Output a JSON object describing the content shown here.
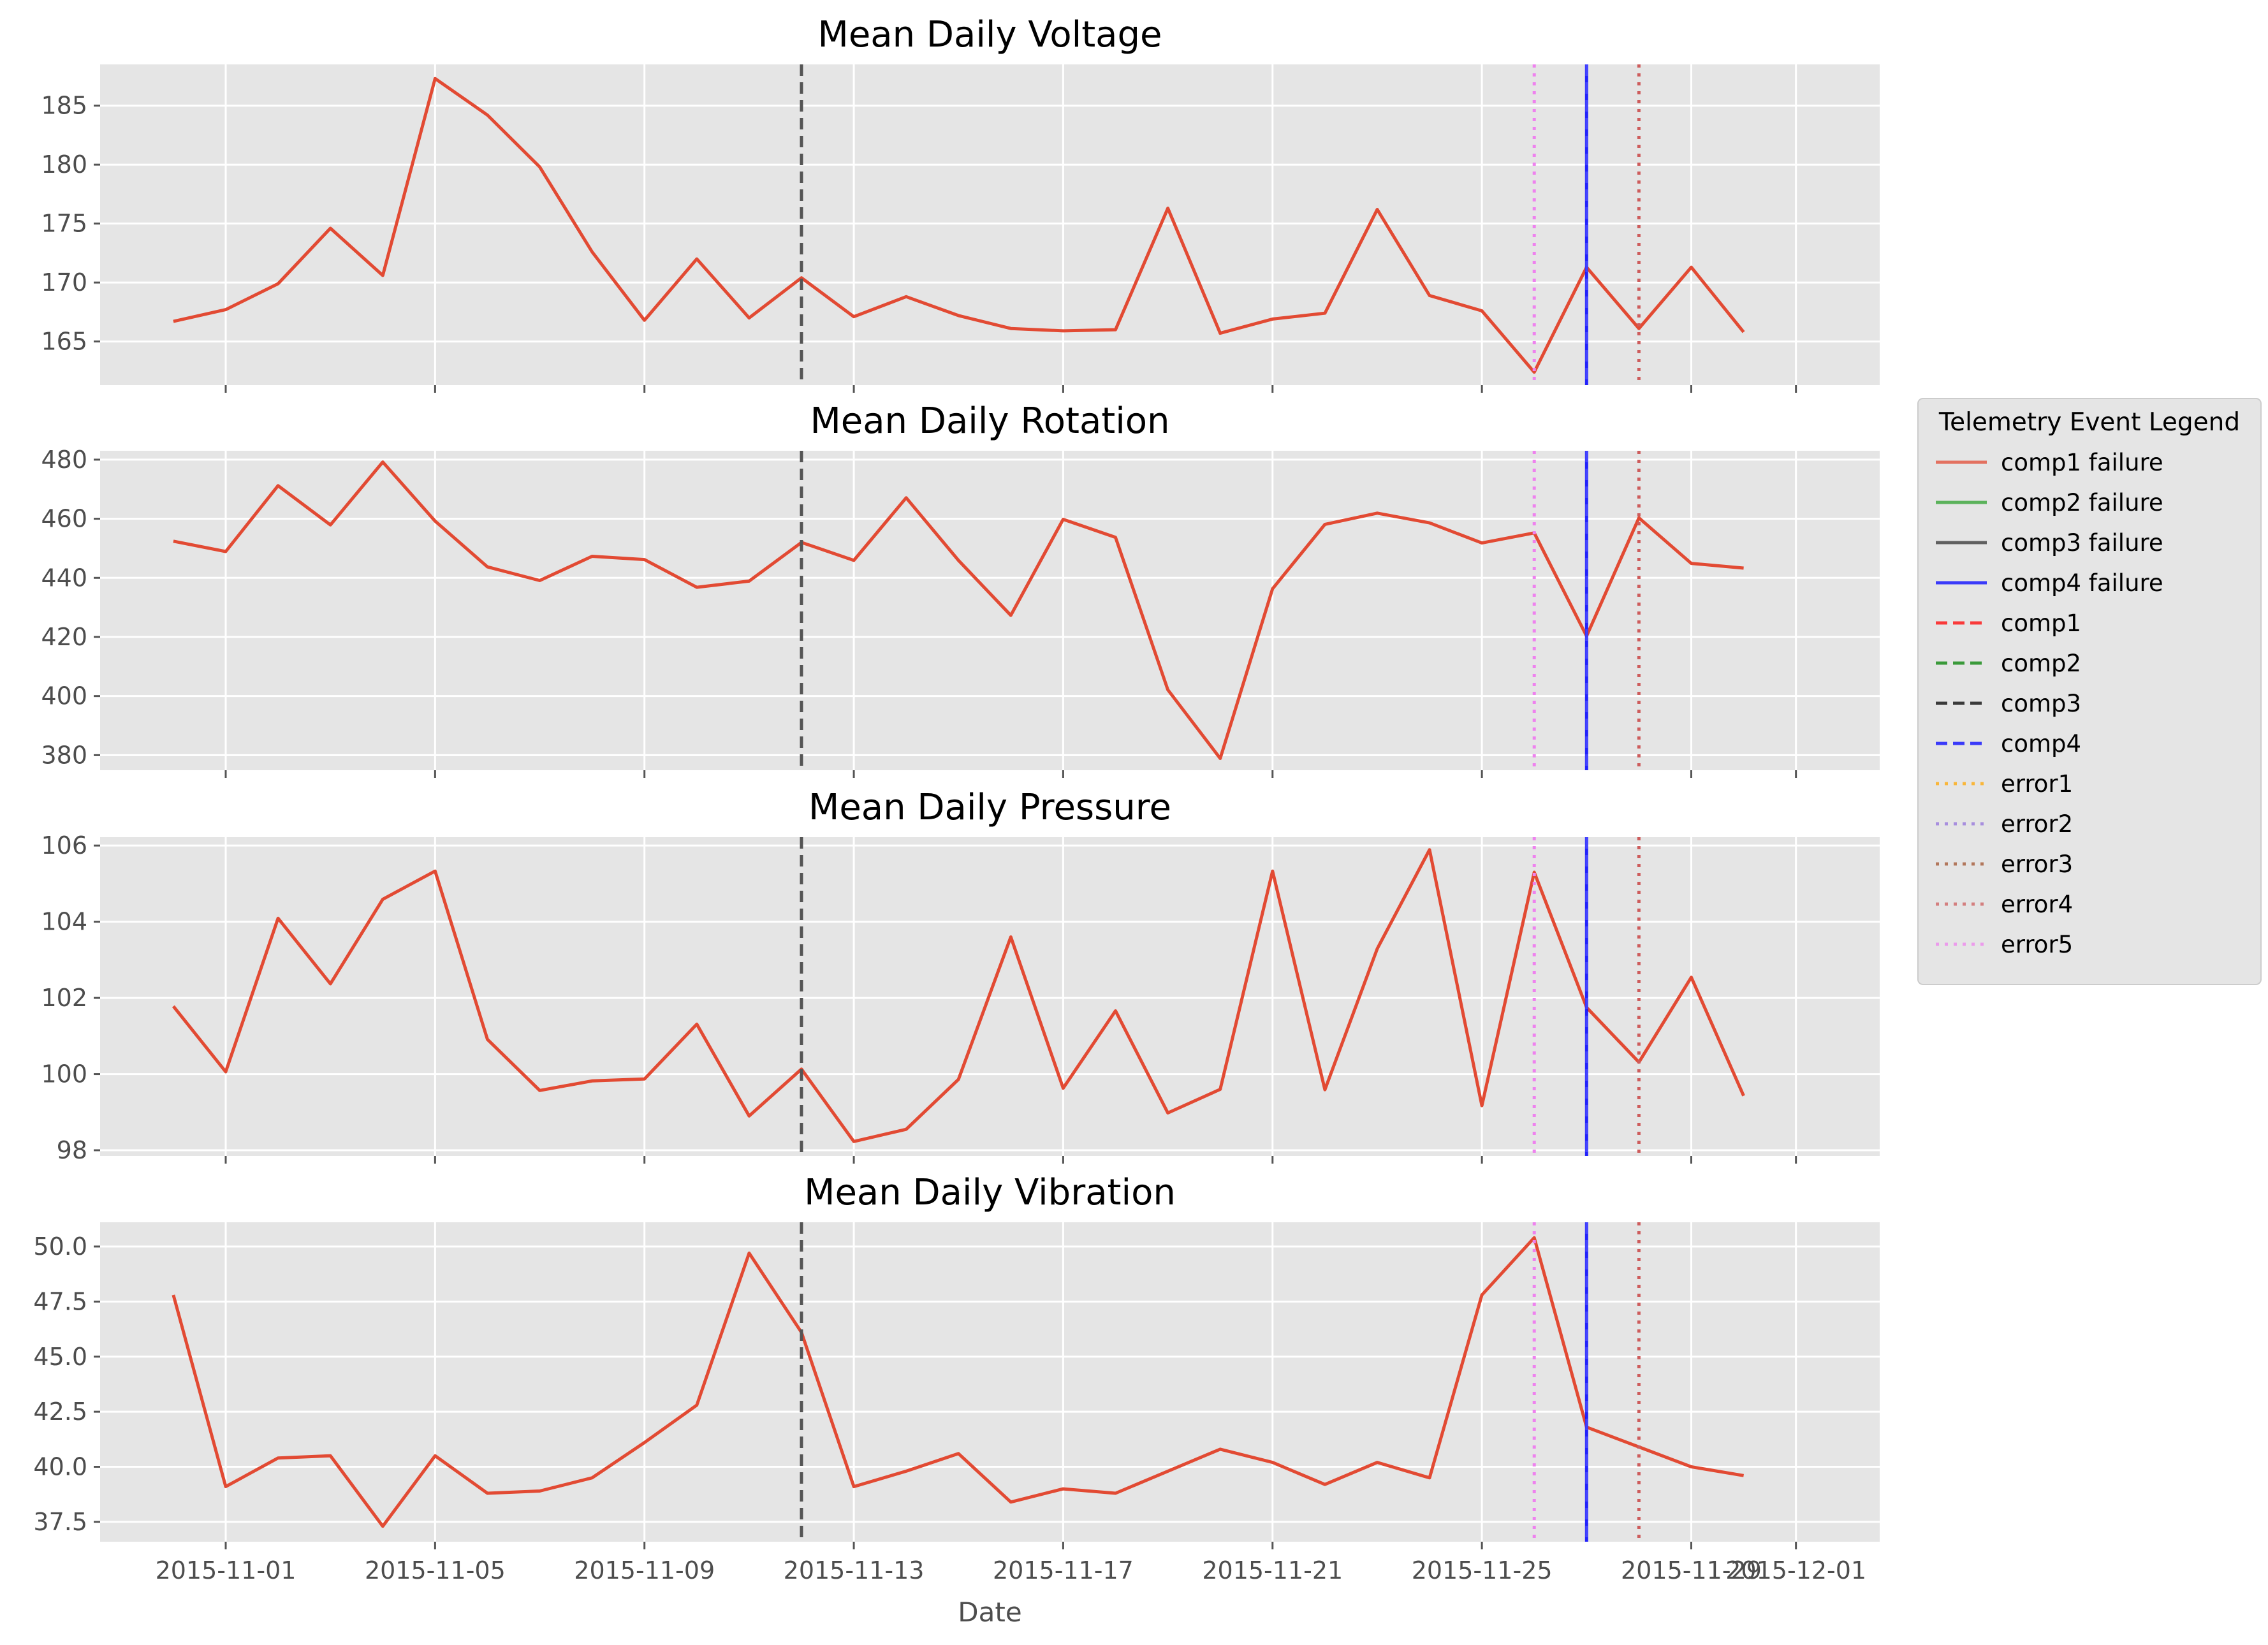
{
  "chart_data": [
    {
      "type": "line",
      "title": "Mean Daily Voltage",
      "xlabel": "",
      "ylabel": "",
      "x": [
        "2015-10-31",
        "2015-11-01",
        "2015-11-02",
        "2015-11-03",
        "2015-11-04",
        "2015-11-05",
        "2015-11-06",
        "2015-11-07",
        "2015-11-08",
        "2015-11-09",
        "2015-11-10",
        "2015-11-11",
        "2015-11-12",
        "2015-11-13",
        "2015-11-14",
        "2015-11-15",
        "2015-11-16",
        "2015-11-17",
        "2015-11-18",
        "2015-11-19",
        "2015-11-20",
        "2015-11-21",
        "2015-11-22",
        "2015-11-23",
        "2015-11-24",
        "2015-11-25",
        "2015-11-26",
        "2015-11-27",
        "2015-11-28",
        "2015-11-29",
        "2015-11-30"
      ],
      "values": [
        166.7,
        167.7,
        169.9,
        174.6,
        170.6,
        187.3,
        184.2,
        179.8,
        172.6,
        166.8,
        172.0,
        167.0,
        170.4,
        167.1,
        168.8,
        167.2,
        166.1,
        165.9,
        166.0,
        176.3,
        165.7,
        166.9,
        167.4,
        176.2,
        168.9,
        167.6,
        162.4,
        171.3,
        166.1,
        171.3,
        165.8
      ],
      "yticks": [
        165,
        170,
        175,
        180,
        185
      ],
      "ytick_labels": [
        "165",
        "170",
        "175",
        "180",
        "185"
      ],
      "ylim": [
        161.3,
        188.5
      ]
    },
    {
      "type": "line",
      "title": "Mean Daily Rotation",
      "xlabel": "",
      "ylabel": "",
      "x": [
        "2015-10-31",
        "2015-11-01",
        "2015-11-02",
        "2015-11-03",
        "2015-11-04",
        "2015-11-05",
        "2015-11-06",
        "2015-11-07",
        "2015-11-08",
        "2015-11-09",
        "2015-11-10",
        "2015-11-11",
        "2015-11-12",
        "2015-11-13",
        "2015-11-14",
        "2015-11-15",
        "2015-11-16",
        "2015-11-17",
        "2015-11-18",
        "2015-11-19",
        "2015-11-20",
        "2015-11-21",
        "2015-11-22",
        "2015-11-23",
        "2015-11-24",
        "2015-11-25",
        "2015-11-26",
        "2015-11-27",
        "2015-11-28",
        "2015-11-29",
        "2015-11-30"
      ],
      "values": [
        452.4,
        448.9,
        471.2,
        457.9,
        479.2,
        459.2,
        443.7,
        439.1,
        447.3,
        446.2,
        436.8,
        438.9,
        452.0,
        445.9,
        467.1,
        445.9,
        427.3,
        459.8,
        453.7,
        402.1,
        378.9,
        436.3,
        458.1,
        461.9,
        458.6,
        451.8,
        455.2,
        420.3,
        460.3,
        444.9,
        443.3
      ],
      "yticks": [
        380,
        400,
        420,
        440,
        460,
        480
      ],
      "ytick_labels": [
        "380",
        "400",
        "420",
        "440",
        "460",
        "480"
      ],
      "ylim": [
        374.9,
        483.0
      ]
    },
    {
      "type": "line",
      "title": "Mean Daily Pressure",
      "xlabel": "",
      "ylabel": "",
      "x": [
        "2015-10-31",
        "2015-11-01",
        "2015-11-02",
        "2015-11-03",
        "2015-11-04",
        "2015-11-05",
        "2015-11-06",
        "2015-11-07",
        "2015-11-08",
        "2015-11-09",
        "2015-11-10",
        "2015-11-11",
        "2015-11-12",
        "2015-11-13",
        "2015-11-14",
        "2015-11-15",
        "2015-11-16",
        "2015-11-17",
        "2015-11-18",
        "2015-11-19",
        "2015-11-20",
        "2015-11-21",
        "2015-11-22",
        "2015-11-23",
        "2015-11-24",
        "2015-11-25",
        "2015-11-26",
        "2015-11-27",
        "2015-11-28",
        "2015-11-29",
        "2015-11-30"
      ],
      "values": [
        101.78,
        100.06,
        104.09,
        102.37,
        104.59,
        105.33,
        100.91,
        99.57,
        99.82,
        99.87,
        101.31,
        98.9,
        100.13,
        98.23,
        98.55,
        99.86,
        103.6,
        99.63,
        101.66,
        98.98,
        99.6,
        105.33,
        99.59,
        103.29,
        105.89,
        99.17,
        105.3,
        101.75,
        100.31,
        102.54,
        99.43
      ],
      "yticks": [
        98,
        100,
        102,
        104,
        106
      ],
      "ytick_labels": [
        "98",
        "100",
        "102",
        "104",
        "106"
      ],
      "ylim": [
        97.85,
        106.22
      ]
    },
    {
      "type": "line",
      "title": "Mean Daily Vibration",
      "xlabel": "Date",
      "ylabel": "",
      "x": [
        "2015-10-31",
        "2015-11-01",
        "2015-11-02",
        "2015-11-03",
        "2015-11-04",
        "2015-11-05",
        "2015-11-06",
        "2015-11-07",
        "2015-11-08",
        "2015-11-09",
        "2015-11-10",
        "2015-11-11",
        "2015-11-12",
        "2015-11-13",
        "2015-11-14",
        "2015-11-15",
        "2015-11-16",
        "2015-11-17",
        "2015-11-18",
        "2015-11-19",
        "2015-11-20",
        "2015-11-21",
        "2015-11-22",
        "2015-11-23",
        "2015-11-24",
        "2015-11-25",
        "2015-11-26",
        "2015-11-27",
        "2015-11-28",
        "2015-11-29",
        "2015-11-30"
      ],
      "values": [
        47.8,
        39.1,
        40.4,
        40.5,
        37.3,
        40.5,
        38.8,
        38.9,
        39.5,
        41.1,
        42.8,
        49.7,
        46.1,
        39.1,
        39.8,
        40.6,
        38.4,
        39.0,
        38.8,
        39.8,
        40.8,
        40.2,
        39.2,
        40.2,
        39.5,
        47.8,
        50.4,
        41.8,
        40.9,
        40.0,
        39.6
      ],
      "yticks": [
        37.5,
        40.0,
        42.5,
        45.0,
        47.5,
        50.0
      ],
      "ytick_labels": [
        "37.5",
        "40.0",
        "42.5",
        "45.0",
        "47.5",
        "50.0"
      ],
      "ylim": [
        36.6,
        51.1
      ]
    }
  ],
  "x_axis": {
    "start": "2015-10-29.6",
    "end": "2015-12-02.6",
    "tick_dates": [
      "2015-11-01",
      "2015-11-05",
      "2015-11-09",
      "2015-11-13",
      "2015-11-17",
      "2015-11-21",
      "2015-11-25",
      "2015-11-29",
      "2015-12-01"
    ],
    "tick_labels": [
      "2015-11-01",
      "2015-11-05",
      "2015-11-09",
      "2015-11-13",
      "2015-11-17",
      "2015-11-21",
      "2015-11-25",
      "2015-11-29",
      "2015-12-01"
    ]
  },
  "events": [
    {
      "date": "2015-11-12",
      "type": "comp3"
    },
    {
      "date": "2015-11-26",
      "type": "error5"
    },
    {
      "date": "2015-11-27",
      "type": "comp4 failure"
    },
    {
      "date": "2015-11-27",
      "type": "comp4"
    },
    {
      "date": "2015-11-28",
      "type": "error4"
    }
  ],
  "legend": {
    "title": "Telemetry Event Legend",
    "placement": "right",
    "items": [
      {
        "label": "comp1 failure",
        "color": "#e24a33",
        "style": "solid"
      },
      {
        "label": "comp2 failure",
        "color": "#2ca02c",
        "style": "solid"
      },
      {
        "label": "comp3 failure",
        "color": "#333333",
        "style": "solid"
      },
      {
        "label": "comp4 failure",
        "color": "#0000ff",
        "style": "solid"
      },
      {
        "label": "comp1",
        "color": "#ff0000",
        "style": "dashed"
      },
      {
        "label": "comp2",
        "color": "#008000",
        "style": "dashed"
      },
      {
        "label": "comp3",
        "color": "#000000",
        "style": "dashed"
      },
      {
        "label": "comp4",
        "color": "#0000ff",
        "style": "dashed"
      },
      {
        "label": "error1",
        "color": "#ffa500",
        "style": "dotted"
      },
      {
        "label": "error2",
        "color": "#9370db",
        "style": "dotted"
      },
      {
        "label": "error3",
        "color": "#a0522d",
        "style": "dotted"
      },
      {
        "label": "error4",
        "color": "#cd5c5c",
        "style": "dotted"
      },
      {
        "label": "error5",
        "color": "#ee82ee",
        "style": "dotted"
      }
    ]
  },
  "colors": {
    "series": "#e24a33",
    "panel_background": "#e5e5e5",
    "grid": "#ffffff"
  }
}
